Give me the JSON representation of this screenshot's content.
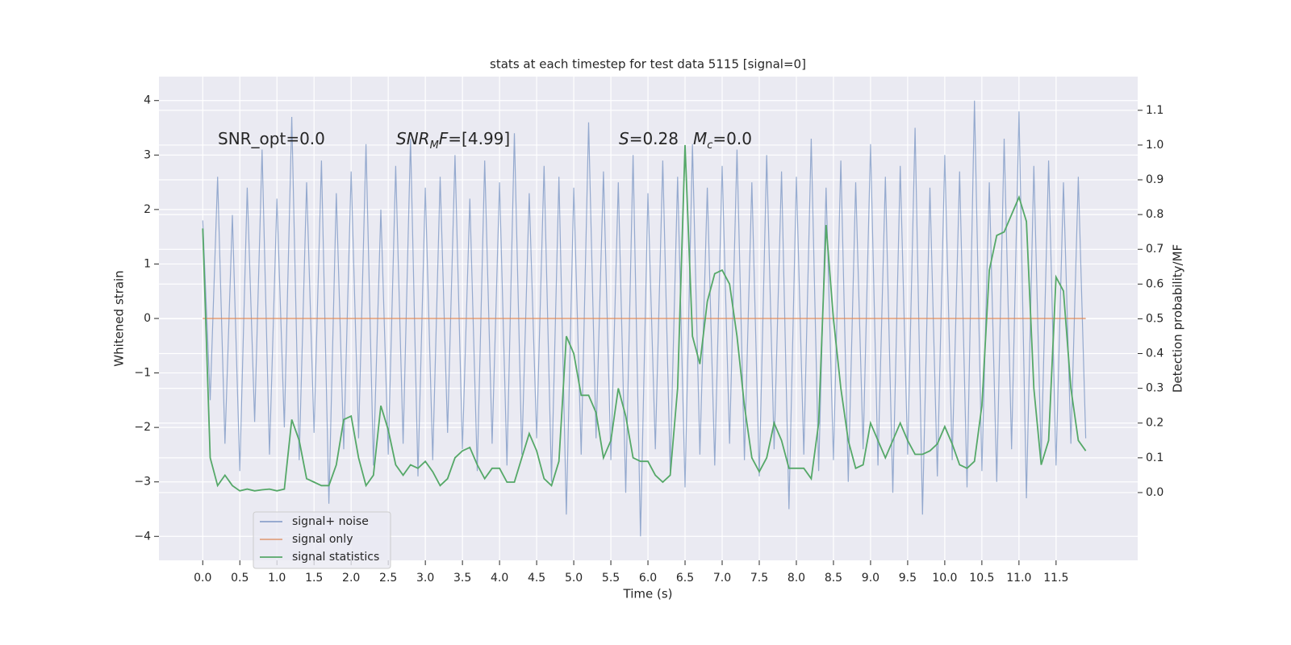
{
  "chart_data": {
    "type": "line",
    "title": "stats at each timestep for test data 5115 [signal=0]",
    "x_label": "Time (s)",
    "y_label": "Whitened strain",
    "y2_label": "Detection probability/MF",
    "annotations": [
      [
        {
          "text": "SNR_opt=0.0",
          "style": "normal"
        }
      ],
      [
        {
          "text": "SNR",
          "style": "italic"
        },
        {
          "text": "M",
          "style": "sub"
        },
        {
          "text": "F",
          "style": "italic"
        },
        {
          "text": "=[4.99]",
          "style": "normal"
        }
      ],
      [
        {
          "text": "S",
          "style": "italic"
        },
        {
          "text": "=0.28",
          "style": "normal"
        }
      ],
      [
        {
          "text": "M",
          "style": "italic"
        },
        {
          "text": "c",
          "style": "sub"
        },
        {
          "text": "=0.0",
          "style": "normal"
        }
      ]
    ],
    "x": [
      0,
      0.1,
      0.2,
      0.3,
      0.4,
      0.5,
      0.6,
      0.7,
      0.8,
      0.9,
      1,
      1.1,
      1.2,
      1.3,
      1.4,
      1.5,
      1.6,
      1.7,
      1.8,
      1.9,
      2,
      2.1,
      2.2,
      2.3,
      2.4,
      2.5,
      2.6,
      2.7,
      2.8,
      2.9,
      3,
      3.1,
      3.2,
      3.3,
      3.4,
      3.5,
      3.6,
      3.7,
      3.8,
      3.9,
      4,
      4.1,
      4.2,
      4.3,
      4.4,
      4.5,
      4.6,
      4.7,
      4.8,
      4.9,
      5,
      5.1,
      5.2,
      5.3,
      5.4,
      5.5,
      5.6,
      5.7,
      5.8,
      5.9,
      6,
      6.1,
      6.2,
      6.3,
      6.4,
      6.5,
      6.6,
      6.7,
      6.8,
      6.9,
      7,
      7.1,
      7.2,
      7.3,
      7.4,
      7.5,
      7.6,
      7.7,
      7.8,
      7.9,
      8,
      8.1,
      8.2,
      8.3,
      8.4,
      8.5,
      8.6,
      8.7,
      8.8,
      8.9,
      9,
      9.1,
      9.2,
      9.3,
      9.4,
      9.5,
      9.6,
      9.7,
      9.8,
      9.9,
      10,
      10.1,
      10.2,
      10.3,
      10.4,
      10.5,
      10.6,
      10.7,
      10.8,
      10.9,
      11,
      11.1,
      11.2,
      11.3,
      11.4,
      11.5,
      11.6,
      11.7,
      11.8,
      11.9
    ],
    "series": [
      {
        "name": "signal+ noise",
        "color": "#4c72b0",
        "values": [
          1.8,
          -1.5,
          2.6,
          -2.3,
          1.9,
          -2.8,
          2.4,
          -1.9,
          3.1,
          -2.5,
          2.2,
          -2.0,
          3.7,
          -2.6,
          2.5,
          -2.1,
          2.9,
          -3.4,
          2.3,
          -2.4,
          2.7,
          -2.2,
          3.2,
          -2.7,
          2.0,
          -2.5,
          2.8,
          -2.3,
          3.3,
          -2.9,
          2.4,
          -2.6,
          2.6,
          -2.1,
          3.0,
          -2.4,
          2.2,
          -2.8,
          2.9,
          -2.3,
          2.5,
          -2.7,
          3.4,
          -2.5,
          2.3,
          -2.2,
          2.8,
          -3.0,
          2.6,
          -3.6,
          2.4,
          -2.5,
          3.6,
          -2.2,
          2.7,
          -2.6,
          2.5,
          -3.2,
          3.0,
          -4.0,
          2.3,
          -2.4,
          2.9,
          -2.8,
          2.6,
          -3.1,
          3.2,
          -2.5,
          2.4,
          -2.7,
          2.8,
          -2.3,
          3.1,
          -2.6,
          2.5,
          -2.9,
          3.0,
          -2.4,
          2.7,
          -3.5,
          2.6,
          -2.5,
          3.3,
          -2.8,
          2.4,
          -2.6,
          2.9,
          -3.0,
          2.5,
          -2.4,
          3.2,
          -2.7,
          2.6,
          -3.2,
          2.8,
          -2.5,
          3.5,
          -3.6,
          2.4,
          -2.9,
          3.0,
          -2.6,
          2.7,
          -3.1,
          4.0,
          -2.8,
          2.5,
          -3.0,
          3.3,
          -2.4,
          3.8,
          -3.3,
          2.8,
          -2.6,
          2.9,
          -2.7,
          2.5,
          -2.3,
          2.6,
          -2.2
        ]
      },
      {
        "name": "signal only",
        "color": "#dd8452",
        "x": [
          0,
          11.9
        ],
        "values": [
          0,
          0
        ]
      },
      {
        "name": "signal statistics",
        "color": "#55a868",
        "axis": "y2",
        "values": [
          0.76,
          0.1,
          0.02,
          0.05,
          0.02,
          0.005,
          0.01,
          0.005,
          0.008,
          0.01,
          0.005,
          0.01,
          0.21,
          0.15,
          0.04,
          0.03,
          0.02,
          0.02,
          0.08,
          0.21,
          0.22,
          0.1,
          0.02,
          0.05,
          0.25,
          0.18,
          0.08,
          0.05,
          0.08,
          0.07,
          0.09,
          0.06,
          0.02,
          0.04,
          0.1,
          0.12,
          0.13,
          0.08,
          0.04,
          0.07,
          0.07,
          0.03,
          0.03,
          0.1,
          0.17,
          0.12,
          0.04,
          0.02,
          0.09,
          0.45,
          0.4,
          0.28,
          0.28,
          0.23,
          0.1,
          0.15,
          0.3,
          0.22,
          0.1,
          0.09,
          0.09,
          0.05,
          0.03,
          0.05,
          0.3,
          1.0,
          0.45,
          0.37,
          0.55,
          0.63,
          0.64,
          0.6,
          0.45,
          0.25,
          0.1,
          0.06,
          0.1,
          0.2,
          0.15,
          0.07,
          0.07,
          0.07,
          0.04,
          0.2,
          0.77,
          0.5,
          0.3,
          0.15,
          0.07,
          0.08,
          0.2,
          0.15,
          0.1,
          0.15,
          0.2,
          0.15,
          0.11,
          0.11,
          0.12,
          0.14,
          0.19,
          0.14,
          0.08,
          0.07,
          0.09,
          0.25,
          0.64,
          0.74,
          0.75,
          0.8,
          0.85,
          0.78,
          0.3,
          0.08,
          0.15,
          0.62,
          0.58,
          0.3,
          0.15,
          0.12
        ]
      }
    ],
    "xlim": [
      -0.59,
      12.6
    ],
    "ylim": [
      -4.44,
      4.44
    ],
    "y2lim": [
      -0.195,
      1.197
    ],
    "xticks": [
      {
        "value": 0,
        "label": "0.0"
      },
      0.5,
      {
        "value": 1,
        "label": "1.0"
      },
      1.5,
      {
        "value": 2,
        "label": "2.0"
      },
      2.5,
      {
        "value": 3,
        "label": "3.0"
      },
      3.5,
      {
        "value": 4,
        "label": "4.0"
      },
      4.5,
      {
        "value": 5,
        "label": "5.0"
      },
      5.5,
      {
        "value": 6,
        "label": "6.0"
      },
      6.5,
      {
        "value": 7,
        "label": "7.0"
      },
      7.5,
      {
        "value": 8,
        "label": "8.0"
      },
      8.5,
      {
        "value": 9,
        "label": "9.0"
      },
      9.5,
      {
        "value": 10,
        "label": "10.0"
      },
      10.5,
      {
        "value": 11,
        "label": "11.0"
      },
      11.5
    ],
    "yticks": [
      {
        "value": -4,
        "label": "−4"
      },
      {
        "value": -3,
        "label": "−3"
      },
      {
        "value": -2,
        "label": "−2"
      },
      {
        "value": -1,
        "label": "−1"
      },
      0,
      1,
      2,
      3,
      4
    ],
    "y2ticks": [
      {
        "value": 0,
        "label": "0.0"
      },
      0.1,
      0.2,
      0.3,
      0.4,
      0.5,
      0.6,
      0.7,
      0.8,
      0.9,
      {
        "value": 1,
        "label": "1.0"
      },
      1.1
    ],
    "grid": true,
    "legend": "lower left"
  }
}
